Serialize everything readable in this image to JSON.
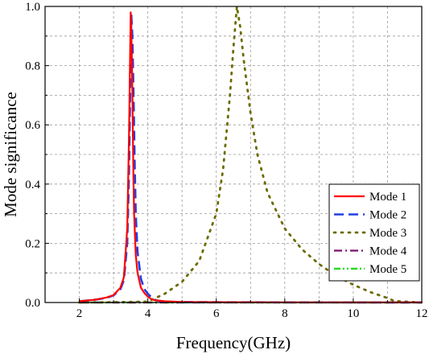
{
  "chart_data": {
    "type": "line",
    "xlabel": "Frequency(GHz)",
    "ylabel": "Mode significance",
    "xlim": [
      1,
      12
    ],
    "ylim": [
      0,
      1
    ],
    "xticks": [
      2,
      4,
      6,
      8,
      10,
      12
    ],
    "yticks": [
      0.0,
      0.2,
      0.4,
      0.6,
      0.8,
      1.0
    ],
    "xtick_labels": [
      "2",
      "4",
      "6",
      "8",
      "10",
      "12"
    ],
    "ytick_labels": [
      "0.0",
      "0.2",
      "0.4",
      "0.6",
      "0.8",
      "1.0"
    ],
    "grid": true,
    "legend_position": "bottom-right",
    "series": [
      {
        "name": "Mode 1",
        "color": "#ff0000",
        "style": "solid",
        "x": [
          2.0,
          2.5,
          2.8,
          3.0,
          3.2,
          3.3,
          3.4,
          3.45,
          3.5,
          3.53,
          3.55,
          3.58,
          3.6,
          3.65,
          3.7,
          3.8,
          3.9,
          4.0,
          4.1,
          4.2,
          4.5,
          5.0,
          6.0,
          8.0,
          10.0,
          12.0
        ],
        "y": [
          0.004,
          0.01,
          0.017,
          0.025,
          0.05,
          0.085,
          0.25,
          0.55,
          0.98,
          0.86,
          0.7,
          0.42,
          0.3,
          0.16,
          0.1,
          0.05,
          0.032,
          0.02,
          0.012,
          0.008,
          0.004,
          0.002,
          0.001,
          0.0005,
          0.0003,
          0.0002
        ]
      },
      {
        "name": "Mode 2",
        "color": "#1f3fe6",
        "style": "dashed",
        "x": [
          2.0,
          2.5,
          2.8,
          3.0,
          3.2,
          3.3,
          3.4,
          3.45,
          3.52,
          3.55,
          3.58,
          3.62,
          3.65,
          3.7,
          3.8,
          3.9,
          4.0,
          4.1,
          4.2,
          4.3,
          4.5,
          5.0,
          6.0,
          8.0,
          10.0,
          12.0
        ],
        "y": [
          0.004,
          0.01,
          0.016,
          0.024,
          0.045,
          0.075,
          0.2,
          0.42,
          0.97,
          0.9,
          0.72,
          0.45,
          0.3,
          0.17,
          0.08,
          0.045,
          0.03,
          0.018,
          0.01,
          0.006,
          0.003,
          0.0015,
          0.001,
          0.0005,
          0.0003,
          0.0002
        ]
      },
      {
        "name": "Mode 3",
        "color": "#6b6b00",
        "style": "dotted",
        "x": [
          2.0,
          3.0,
          4.0,
          4.5,
          5.0,
          5.5,
          6.0,
          6.2,
          6.4,
          6.5,
          6.6,
          6.7,
          6.8,
          7.0,
          7.2,
          7.5,
          8.0,
          8.5,
          9.0,
          9.5,
          10.0,
          10.5,
          11.0,
          11.2,
          12.0
        ],
        "y": [
          0.0,
          0.001,
          0.003,
          0.03,
          0.07,
          0.14,
          0.3,
          0.45,
          0.7,
          0.86,
          1.0,
          0.93,
          0.82,
          0.64,
          0.5,
          0.37,
          0.25,
          0.18,
          0.13,
          0.09,
          0.06,
          0.035,
          0.015,
          0.005,
          0.0
        ]
      },
      {
        "name": "Mode 4",
        "color": "#7a0f6e",
        "style": "dashdot",
        "x": [
          2.0,
          4.0,
          6.0,
          8.0,
          10.0,
          12.0
        ],
        "y": [
          0.0,
          0.0,
          0.0,
          0.0,
          0.0,
          0.0
        ]
      },
      {
        "name": "Mode 5",
        "color": "#22dd22",
        "style": "dashdotdot",
        "x": [
          2.0,
          4.0,
          6.0,
          8.0,
          10.0,
          12.0
        ],
        "y": [
          0.0,
          0.0,
          0.0,
          0.0,
          0.0,
          0.0
        ]
      }
    ]
  }
}
